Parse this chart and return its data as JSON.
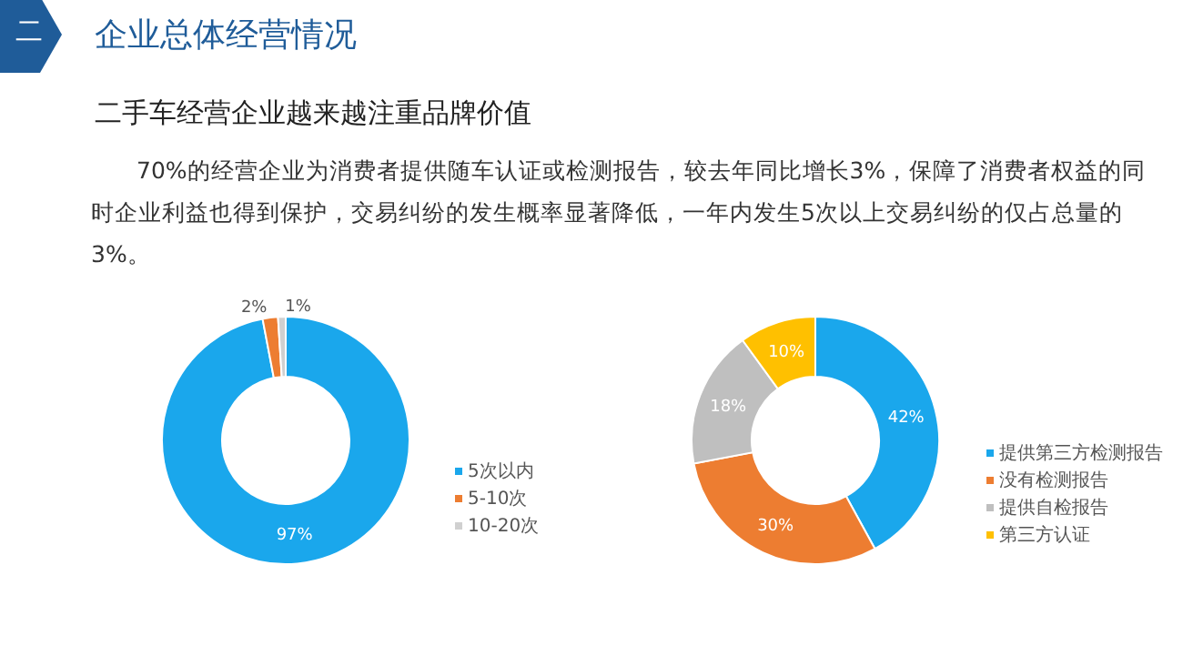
{
  "chart_data": [
    {
      "type": "other",
      "title": "企业总体经营情况",
      "subtitle": "二手车经营企业越来越注重品牌价值",
      "annotations": [
        "二",
        "70%的经营企业为消费者提供随车认证或检测报告，较去年同比增长3%，保障了消费者权益的同时企业利益也得到保护，交易纠纷的发生概率显著降低，一年内发生5次以上交易纠纷的仅占总量的3%。"
      ]
    },
    {
      "type": "donut",
      "categories": [
        "5次以内",
        "5-10次",
        "10-20次"
      ],
      "values": [
        97,
        2,
        1
      ],
      "colors": [
        "#1aa7ec",
        "#ed7d31",
        "#d0d0d0"
      ],
      "value_labels": [
        "97%",
        "2%",
        "1%"
      ],
      "legend": "right"
    },
    {
      "type": "donut",
      "categories": [
        "提供第三方检测报告",
        "没有检测报告",
        "提供自检报告",
        "第三方认证"
      ],
      "values": [
        42,
        30,
        18,
        10
      ],
      "colors": [
        "#1aa7ec",
        "#ed7d31",
        "#bfbfbf",
        "#ffc000"
      ],
      "value_labels": [
        "42%",
        "30%",
        "18%",
        "10%"
      ],
      "legend": "right"
    }
  ]
}
